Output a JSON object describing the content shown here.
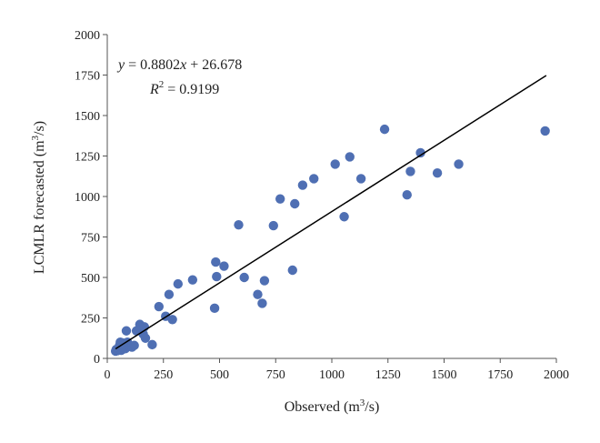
{
  "chart_data": {
    "type": "scatter",
    "xlabel": {
      "main": "Observed (m",
      "sup": "3",
      "tail": "/s)"
    },
    "ylabel": {
      "main": "LCMLR forecasted (m",
      "sup": "3",
      "tail": "/s)"
    },
    "xlim": [
      0,
      2000
    ],
    "ylim": [
      0,
      2000
    ],
    "x_ticks": [
      "0",
      "250",
      "500",
      "750",
      "1000",
      "1250",
      "1500",
      "1750",
      "2000"
    ],
    "y_ticks": [
      "0",
      "250",
      "500",
      "750",
      "1000",
      "1250",
      "1500",
      "1750",
      "2000"
    ],
    "grid": false,
    "marker_color": "#4F6FB3",
    "line_color": "#000000",
    "equation": {
      "y": "y",
      "eq": " = 0.8802",
      "x": "x",
      "rest": " + 26.678"
    },
    "r2": {
      "r": "R",
      "sup": "2",
      "rest": " = 0.9199"
    },
    "fit_line": {
      "slope": 0.8802,
      "intercept": 26.678,
      "x_range": [
        37,
        1955
      ]
    },
    "points": [
      {
        "x": 37,
        "y": 45
      },
      {
        "x": 40,
        "y": 55
      },
      {
        "x": 45,
        "y": 48
      },
      {
        "x": 50,
        "y": 62
      },
      {
        "x": 55,
        "y": 80
      },
      {
        "x": 58,
        "y": 100
      },
      {
        "x": 62,
        "y": 50
      },
      {
        "x": 65,
        "y": 70
      },
      {
        "x": 70,
        "y": 95
      },
      {
        "x": 75,
        "y": 85
      },
      {
        "x": 80,
        "y": 60
      },
      {
        "x": 85,
        "y": 170
      },
      {
        "x": 90,
        "y": 100
      },
      {
        "x": 100,
        "y": 75
      },
      {
        "x": 110,
        "y": 70
      },
      {
        "x": 120,
        "y": 80
      },
      {
        "x": 130,
        "y": 170
      },
      {
        "x": 145,
        "y": 210
      },
      {
        "x": 150,
        "y": 180
      },
      {
        "x": 160,
        "y": 150
      },
      {
        "x": 165,
        "y": 195
      },
      {
        "x": 170,
        "y": 125
      },
      {
        "x": 200,
        "y": 85
      },
      {
        "x": 230,
        "y": 320
      },
      {
        "x": 260,
        "y": 260
      },
      {
        "x": 275,
        "y": 395
      },
      {
        "x": 290,
        "y": 240
      },
      {
        "x": 315,
        "y": 460
      },
      {
        "x": 380,
        "y": 485
      },
      {
        "x": 478,
        "y": 310
      },
      {
        "x": 483,
        "y": 595
      },
      {
        "x": 487,
        "y": 505
      },
      {
        "x": 520,
        "y": 570
      },
      {
        "x": 585,
        "y": 825
      },
      {
        "x": 610,
        "y": 500
      },
      {
        "x": 670,
        "y": 395
      },
      {
        "x": 690,
        "y": 340
      },
      {
        "x": 700,
        "y": 480
      },
      {
        "x": 740,
        "y": 820
      },
      {
        "x": 770,
        "y": 985
      },
      {
        "x": 825,
        "y": 545
      },
      {
        "x": 835,
        "y": 955
      },
      {
        "x": 870,
        "y": 1070
      },
      {
        "x": 920,
        "y": 1110
      },
      {
        "x": 1015,
        "y": 1200
      },
      {
        "x": 1055,
        "y": 875
      },
      {
        "x": 1080,
        "y": 1245
      },
      {
        "x": 1130,
        "y": 1110
      },
      {
        "x": 1235,
        "y": 1415
      },
      {
        "x": 1335,
        "y": 1010
      },
      {
        "x": 1350,
        "y": 1155
      },
      {
        "x": 1395,
        "y": 1270
      },
      {
        "x": 1470,
        "y": 1145
      },
      {
        "x": 1565,
        "y": 1200
      },
      {
        "x": 1950,
        "y": 1405
      }
    ]
  }
}
